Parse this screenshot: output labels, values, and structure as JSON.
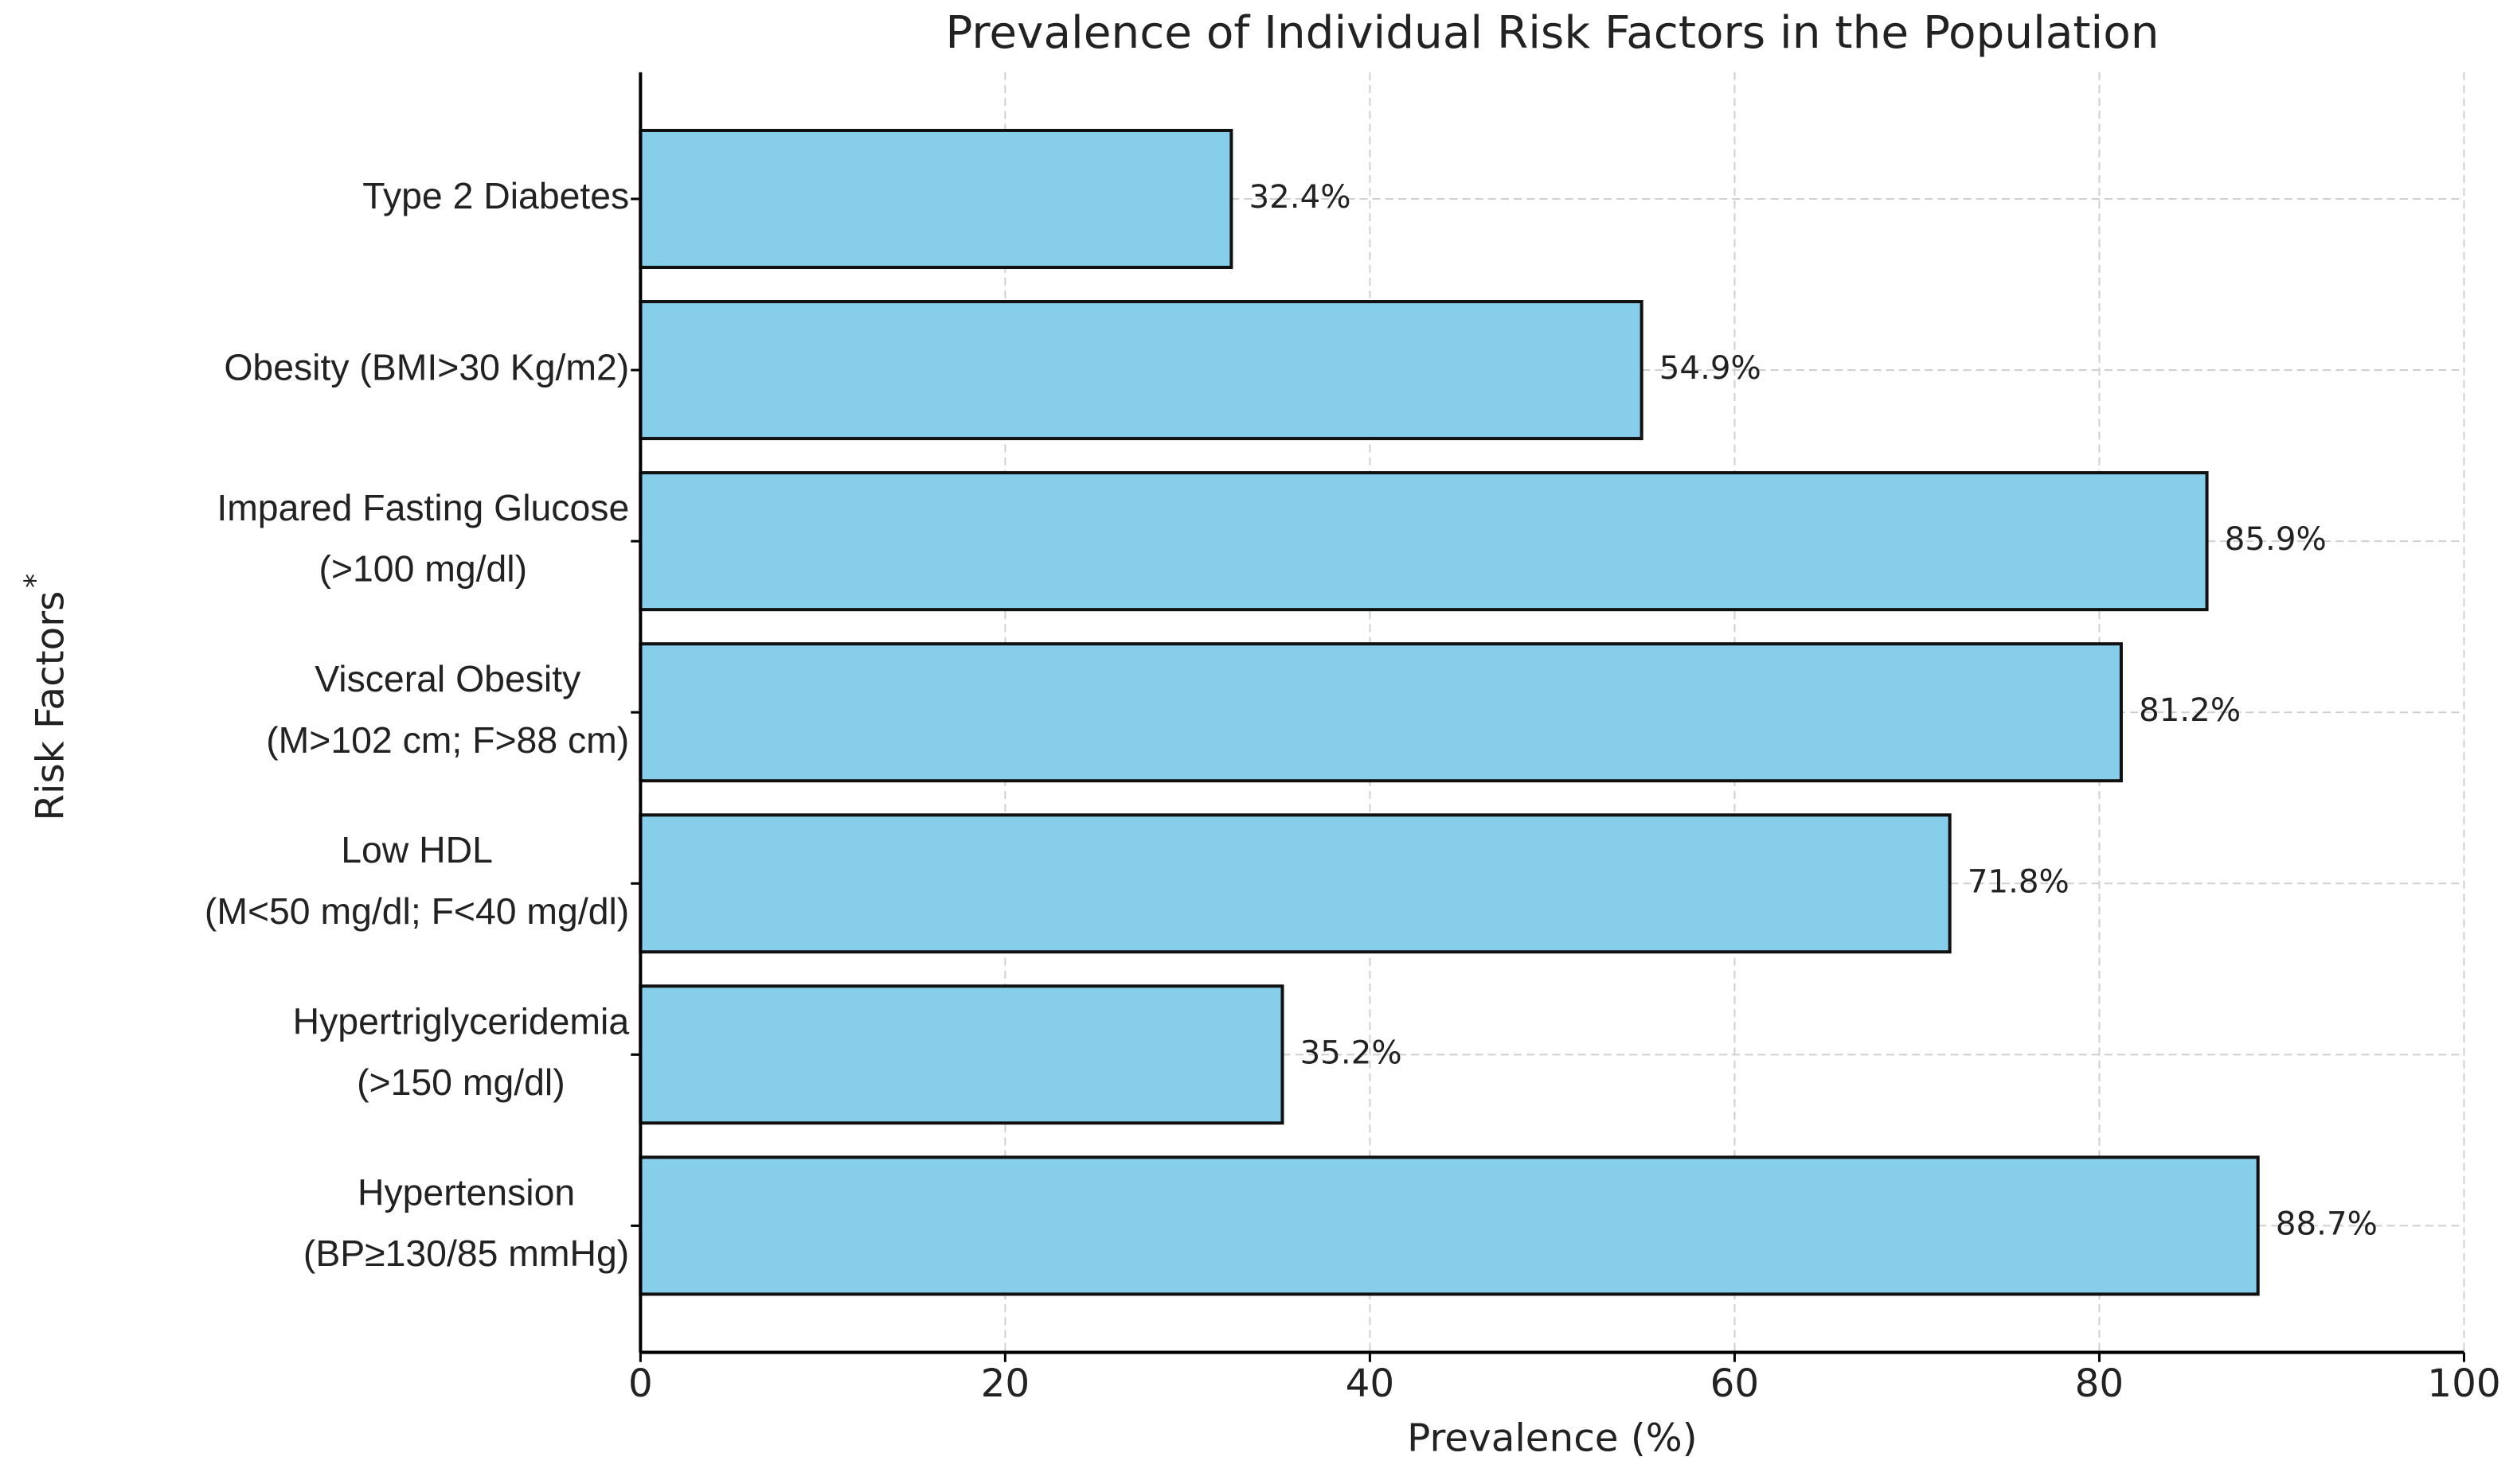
{
  "chart_data": {
    "type": "barh",
    "title": "Prevalence of Individual Risk Factors in the Population",
    "x_label": "Prevalence (%)",
    "y_label": "Risk Factors",
    "y_label_marker": "*",
    "categories": [
      [
        "Type 2 Diabetes"
      ],
      [
        "Obesity (BMI>30 Kg/m2)"
      ],
      [
        "Impared Fasting Glucose",
        "(>100 mg/dl)"
      ],
      [
        "Visceral Obesity",
        "(M>102 cm; F>88 cm)"
      ],
      [
        "Low HDL",
        "(M<50 mg/dl; F<40 mg/dl)"
      ],
      [
        "Hypertriglyceridemia",
        "(>150 mg/dl)"
      ],
      [
        "Hypertension",
        "(BP≥130/85 mmHg)"
      ]
    ],
    "values": [
      32.4,
      54.9,
      85.9,
      81.2,
      71.8,
      35.2,
      88.7
    ],
    "value_labels": [
      "32.4%",
      "54.9%",
      "85.9%",
      "81.2%",
      "71.8%",
      "35.2%",
      "88.7%"
    ],
    "color": "#87ceeb",
    "xlim": [
      0,
      100
    ],
    "xticks": [
      0,
      20,
      40,
      60,
      80,
      100
    ],
    "grid": true
  }
}
